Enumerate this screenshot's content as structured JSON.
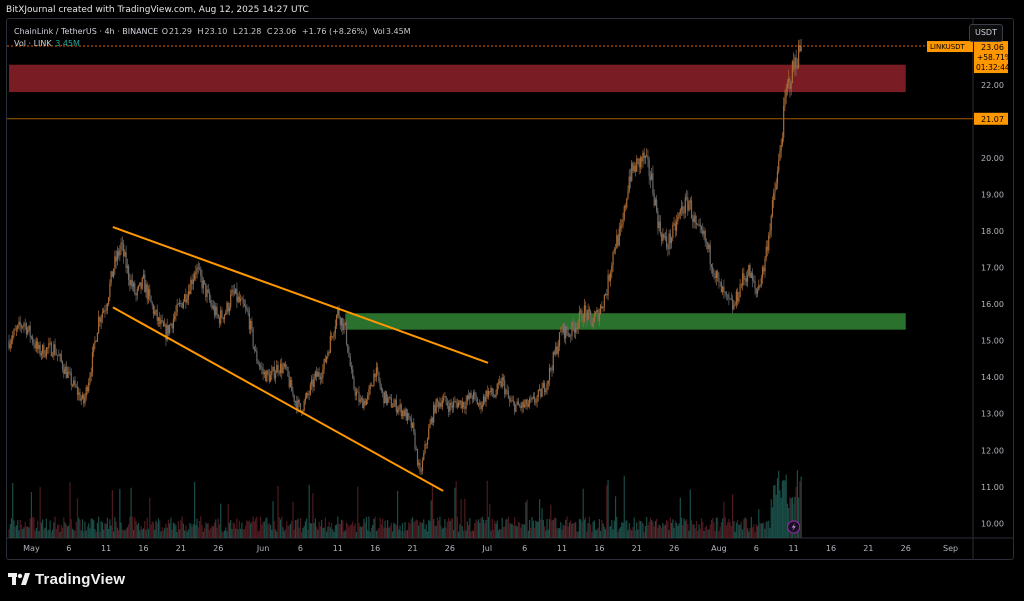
{
  "attribution": "BitXJournal created with TradingView.com, Aug 12, 2025 14:27 UTC",
  "legend": {
    "symbol": "ChainLink / TetherUS · 4h · BINANCE",
    "open_label": "O",
    "open": "21.29",
    "high_label": "H",
    "high": "23.10",
    "low_label": "L",
    "low": "21.28",
    "close_label": "C",
    "close": "23.06",
    "change": "+1.76 (+8.26%)",
    "vol_label": "Vol",
    "vol": "3.45M",
    "volume_row_label": "Vol · LINK",
    "volume_row_value": "3.45M"
  },
  "currency_button": "USDT",
  "price_tag": {
    "ticker": "LINKUSDT",
    "price": "23.06",
    "change": "+58.71%",
    "countdown": "01:32:44"
  },
  "level_tag": "21.07",
  "footer_logo": "TradingView",
  "colors": {
    "up": "#a86a35",
    "down": "#6b6b6b",
    "orange": "#ff9800",
    "red_zone": "#801e26",
    "green_zone": "#2e7d32"
  },
  "chart_data": {
    "type": "candlestick",
    "timeframe": "4h",
    "y_axis": {
      "ticks": [
        10.0,
        11.0,
        12.0,
        13.0,
        14.0,
        15.0,
        16.0,
        17.0,
        18.0,
        19.0,
        20.0,
        21.0,
        22.0
      ],
      "range": [
        9.6,
        23.8
      ],
      "tick_labels": [
        "10.00",
        "11.00",
        "12.00",
        "13.00",
        "14.00",
        "15.00",
        "16.00",
        "17.00",
        "18.00",
        "19.00",
        "20.00",
        "21.00",
        "22.00"
      ]
    },
    "x_axis": {
      "labels": [
        "May",
        "6",
        "11",
        "16",
        "21",
        "26",
        "Jun",
        "6",
        "11",
        "16",
        "21",
        "26",
        "Jul",
        "6",
        "11",
        "16",
        "21",
        "26",
        "Aug",
        "6",
        "11",
        "16",
        "21",
        "26",
        "Sep"
      ],
      "range": [
        "2025-04-28",
        "2025-09-04"
      ]
    },
    "price_path": [
      [
        "2025-04-28",
        15.0
      ],
      [
        "2025-04-30",
        15.5
      ],
      [
        "2025-05-02",
        14.7
      ],
      [
        "2025-05-04",
        14.8
      ],
      [
        "2025-05-06",
        14.0
      ],
      [
        "2025-05-08",
        13.3
      ],
      [
        "2025-05-09",
        14.3
      ],
      [
        "2025-05-10",
        15.6
      ],
      [
        "2025-05-11",
        16.0
      ],
      [
        "2025-05-12",
        17.0
      ],
      [
        "2025-05-13",
        17.6
      ],
      [
        "2025-05-14",
        16.8
      ],
      [
        "2025-05-15",
        16.2
      ],
      [
        "2025-05-16",
        16.6
      ],
      [
        "2025-05-17",
        16.0
      ],
      [
        "2025-05-18",
        15.5
      ],
      [
        "2025-05-19",
        15.2
      ],
      [
        "2025-05-20",
        15.6
      ],
      [
        "2025-05-21",
        16.0
      ],
      [
        "2025-05-22",
        16.4
      ],
      [
        "2025-05-23",
        17.0
      ],
      [
        "2025-05-24",
        16.5
      ],
      [
        "2025-05-25",
        16.0
      ],
      [
        "2025-05-26",
        15.6
      ],
      [
        "2025-05-27",
        15.8
      ],
      [
        "2025-05-28",
        16.3
      ],
      [
        "2025-05-30",
        15.7
      ],
      [
        "2025-05-31",
        14.6
      ],
      [
        "2025-06-01",
        14.1
      ],
      [
        "2025-06-02",
        14.0
      ],
      [
        "2025-06-03",
        14.3
      ],
      [
        "2025-06-04",
        14.2
      ],
      [
        "2025-06-05",
        13.5
      ],
      [
        "2025-06-06",
        13.1
      ],
      [
        "2025-06-07",
        13.5
      ],
      [
        "2025-06-08",
        14.0
      ],
      [
        "2025-06-09",
        14.2
      ],
      [
        "2025-06-10",
        15.0
      ],
      [
        "2025-06-11",
        15.8
      ],
      [
        "2025-06-12",
        15.3
      ],
      [
        "2025-06-13",
        13.8
      ],
      [
        "2025-06-14",
        13.3
      ],
      [
        "2025-06-15",
        13.4
      ],
      [
        "2025-06-16",
        14.2
      ],
      [
        "2025-06-17",
        13.5
      ],
      [
        "2025-06-18",
        13.3
      ],
      [
        "2025-06-19",
        13.2
      ],
      [
        "2025-06-20",
        13.0
      ],
      [
        "2025-06-21",
        12.6
      ],
      [
        "2025-06-22",
        11.3
      ],
      [
        "2025-06-23",
        12.4
      ],
      [
        "2025-06-24",
        13.2
      ],
      [
        "2025-06-25",
        13.4
      ],
      [
        "2025-06-26",
        13.2
      ],
      [
        "2025-06-27",
        13.3
      ],
      [
        "2025-06-28",
        13.3
      ],
      [
        "2025-06-29",
        13.5
      ],
      [
        "2025-06-30",
        13.2
      ],
      [
        "2025-07-01",
        13.6
      ],
      [
        "2025-07-02",
        13.5
      ],
      [
        "2025-07-03",
        13.9
      ],
      [
        "2025-07-04",
        13.3
      ],
      [
        "2025-07-05",
        13.2
      ],
      [
        "2025-07-06",
        13.2
      ],
      [
        "2025-07-07",
        13.3
      ],
      [
        "2025-07-08",
        13.5
      ],
      [
        "2025-07-09",
        13.9
      ],
      [
        "2025-07-10",
        14.6
      ],
      [
        "2025-07-11",
        15.3
      ],
      [
        "2025-07-12",
        15.2
      ],
      [
        "2025-07-13",
        15.5
      ],
      [
        "2025-07-14",
        15.8
      ],
      [
        "2025-07-15",
        15.5
      ],
      [
        "2025-07-16",
        15.8
      ],
      [
        "2025-07-17",
        16.4
      ],
      [
        "2025-07-18",
        17.6
      ],
      [
        "2025-07-19",
        18.0
      ],
      [
        "2025-07-20",
        19.5
      ],
      [
        "2025-07-21",
        19.8
      ],
      [
        "2025-07-22",
        20.0
      ],
      [
        "2025-07-23",
        19.4
      ],
      [
        "2025-07-24",
        18.1
      ],
      [
        "2025-07-25",
        17.6
      ],
      [
        "2025-07-26",
        18.0
      ],
      [
        "2025-07-27",
        18.6
      ],
      [
        "2025-07-28",
        18.8
      ],
      [
        "2025-07-29",
        18.0
      ],
      [
        "2025-07-30",
        17.8
      ],
      [
        "2025-07-31",
        17.2
      ],
      [
        "2025-08-01",
        16.5
      ],
      [
        "2025-08-02",
        16.1
      ],
      [
        "2025-08-03",
        15.9
      ],
      [
        "2025-08-04",
        16.6
      ],
      [
        "2025-08-05",
        16.9
      ],
      [
        "2025-08-06",
        16.3
      ],
      [
        "2025-08-07",
        17.0
      ],
      [
        "2025-08-08",
        18.4
      ],
      [
        "2025-08-09",
        19.8
      ],
      [
        "2025-08-10",
        21.8
      ],
      [
        "2025-08-11",
        22.5
      ],
      [
        "2025-08-12",
        23.06
      ]
    ],
    "pattern_lines": [
      {
        "from": [
          "2025-05-12",
          18.1
        ],
        "to": [
          "2025-07-01",
          14.4
        ]
      },
      {
        "from": [
          "2025-05-12",
          15.9
        ],
        "to": [
          "2025-06-25",
          10.9
        ]
      }
    ],
    "zones": [
      {
        "type": "resistance",
        "from": "2025-04-28",
        "to": "2025-08-26",
        "y_low": 21.8,
        "y_high": 22.55
      },
      {
        "type": "support",
        "from": "2025-06-12",
        "to": "2025-08-26",
        "y_low": 15.3,
        "y_high": 15.75
      }
    ],
    "horizontal_levels": [
      21.07,
      23.06
    ]
  }
}
